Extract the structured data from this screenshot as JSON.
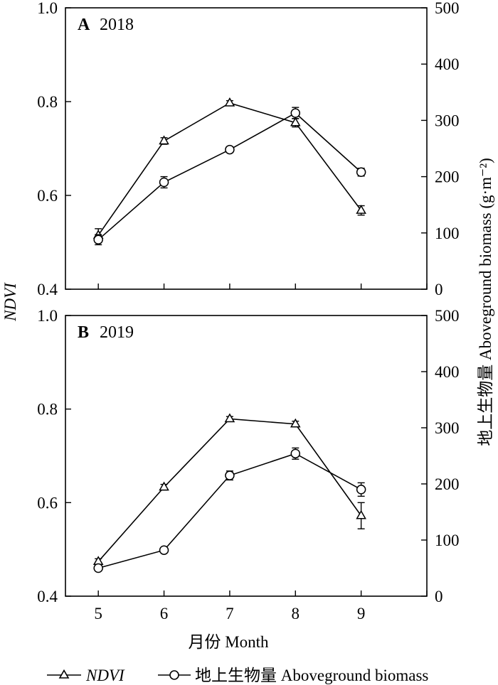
{
  "chart_data": [
    {
      "type": "line",
      "panel_label": "A",
      "panel_year": "2018",
      "x": [
        5,
        6,
        7,
        8,
        9
      ],
      "xlim": [
        4.5,
        10
      ],
      "xticks": [
        5,
        6,
        7,
        8,
        9
      ],
      "ylim_left": [
        0.4,
        1.0
      ],
      "yticks_left": [
        "0.4",
        "0.6",
        "0.8",
        "1.0"
      ],
      "ylim_right": [
        0,
        500
      ],
      "yticks_right": [
        "0",
        "100",
        "200",
        "300",
        "400",
        "500"
      ],
      "grid": false,
      "series": [
        {
          "key": "ndvi",
          "axis": "left",
          "marker": "triangle",
          "values": [
            0.515,
            0.716,
            0.797,
            0.755,
            0.568
          ],
          "errors": [
            0.014,
            0.007,
            0.005,
            0.009,
            0.01
          ]
        },
        {
          "key": "biomass",
          "axis": "right",
          "marker": "circle",
          "values": [
            88,
            190,
            248,
            313,
            208
          ],
          "errors": [
            9,
            10,
            5,
            10,
            7
          ]
        }
      ]
    },
    {
      "type": "line",
      "panel_label": "B",
      "panel_year": "2019",
      "x": [
        5,
        6,
        7,
        8,
        9
      ],
      "xlim": [
        4.5,
        10
      ],
      "xticks": [
        5,
        6,
        7,
        8,
        9
      ],
      "ylim_left": [
        0.4,
        1.0
      ],
      "yticks_left": [
        "0.4",
        "0.6",
        "0.8",
        "1.0"
      ],
      "ylim_right": [
        0,
        500
      ],
      "yticks_right": [
        "0",
        "100",
        "200",
        "300",
        "400",
        "500"
      ],
      "grid": false,
      "series": [
        {
          "key": "ndvi",
          "axis": "left",
          "marker": "triangle",
          "values": [
            0.474,
            0.633,
            0.779,
            0.768,
            0.572
          ],
          "errors": [
            0.006,
            0.006,
            0.005,
            0.006,
            0.028
          ]
        },
        {
          "key": "biomass",
          "axis": "right",
          "marker": "circle",
          "values": [
            50,
            82,
            215,
            254,
            190
          ],
          "errors": [
            5,
            4,
            8,
            10,
            12
          ]
        }
      ]
    }
  ],
  "axes": {
    "ylabel_left": "NDVI",
    "ylabel_right": "地上生物量 Aboveground biomass (g·m⁻²)",
    "xlabel": "月份 Month"
  },
  "legend": {
    "position": "bottom",
    "items": [
      {
        "key": "ndvi",
        "label": "NDVI",
        "italic": true,
        "marker": "triangle"
      },
      {
        "key": "biomass",
        "label": "地上生物量 Aboveground biomass",
        "italic": false,
        "marker": "circle"
      }
    ]
  }
}
